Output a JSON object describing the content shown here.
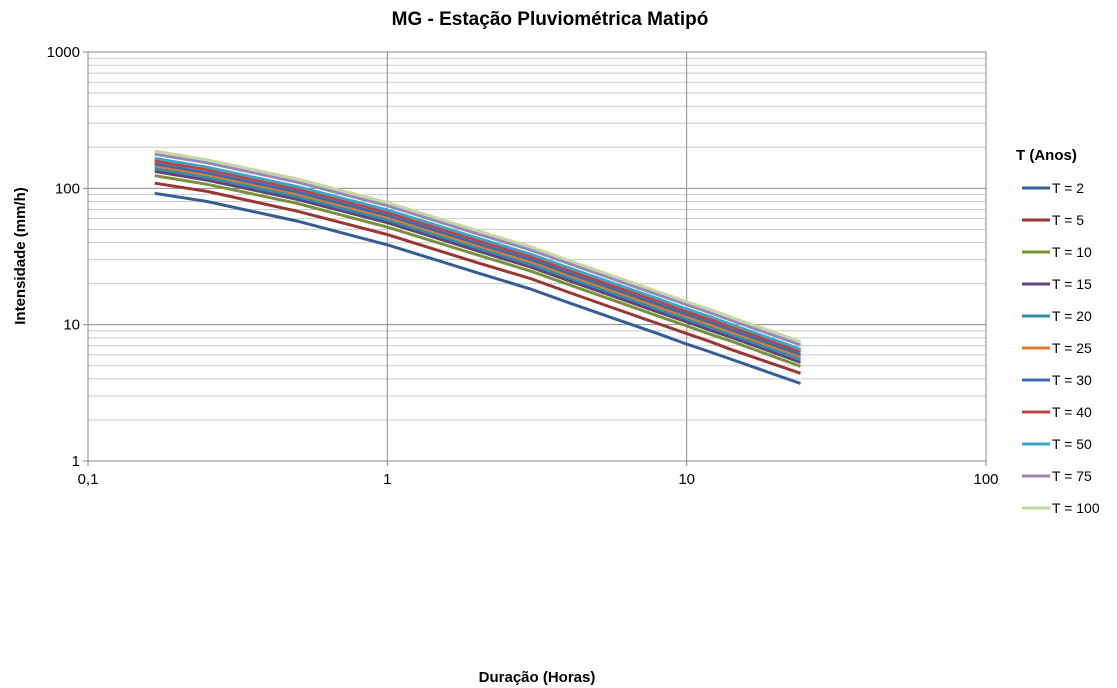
{
  "chart_data": {
    "type": "line",
    "title": "MG - Estação Pluviométrica Matipó",
    "xlabel": "Duração (Horas)",
    "ylabel": "Intensidade (mm/h)",
    "x_scale": "log",
    "y_scale": "log",
    "xlim": [
      0.1,
      100
    ],
    "ylim": [
      1,
      1000
    ],
    "x_tick_labels": [
      "0,1",
      "1",
      "10",
      "100"
    ],
    "y_tick_labels": [
      "1",
      "10",
      "100",
      "1000"
    ],
    "grid": true,
    "legend_title": "T (Anos)",
    "legend_position": "right",
    "x": [
      0.167,
      0.25,
      0.5,
      1,
      2,
      3,
      4,
      6,
      8,
      10,
      12,
      14,
      24
    ],
    "series": [
      {
        "name": "T = 2",
        "color": "#365e96",
        "values": [
          92,
          80,
          57.5,
          38.5,
          24,
          18.3,
          14.6,
          10.7,
          8.6,
          7.2,
          6.3,
          5.6,
          3.7
        ]
      },
      {
        "name": "T = 5",
        "color": "#9a3633",
        "values": [
          109,
          95,
          68,
          45.8,
          28.5,
          21.8,
          17.4,
          12.7,
          10.2,
          8.6,
          7.5,
          6.6,
          4.4
        ]
      },
      {
        "name": "T = 10",
        "color": "#78913a",
        "values": [
          124,
          107,
          77.5,
          52,
          32.5,
          24.8,
          19.8,
          14.5,
          11.6,
          9.8,
          8.5,
          7.6,
          4.95
        ]
      },
      {
        "name": "T = 15",
        "color": "#5c4580",
        "values": [
          133,
          115,
          83,
          56,
          34.8,
          26.5,
          21.2,
          15.5,
          12.4,
          10.5,
          9.1,
          8.1,
          5.3
        ]
      },
      {
        "name": "T = 20",
        "color": "#2f8fa6",
        "values": [
          140,
          121,
          87,
          58.8,
          36.6,
          27.9,
          22.3,
          16.3,
          13.1,
          11,
          9.6,
          8.5,
          5.6
        ]
      },
      {
        "name": "T = 25",
        "color": "#e57c2c",
        "values": [
          146,
          126,
          91,
          61.3,
          38.1,
          29.1,
          23.2,
          17,
          13.6,
          11.5,
          10,
          8.9,
          5.85
        ]
      },
      {
        "name": "T = 30",
        "color": "#3f6bac",
        "values": [
          151,
          130,
          94,
          63.4,
          39.4,
          30.1,
          24,
          17.6,
          14.1,
          11.9,
          10.4,
          9.2,
          6.05
        ]
      },
      {
        "name": "T = 40",
        "color": "#c0413d",
        "values": [
          159,
          137,
          99,
          66.8,
          41.5,
          31.7,
          25.3,
          18.5,
          14.9,
          12.5,
          10.9,
          9.7,
          6.35
        ]
      },
      {
        "name": "T = 50",
        "color": "#3aa5c5",
        "values": [
          166,
          143,
          103,
          69.5,
          43.2,
          33,
          26.3,
          19.3,
          15.5,
          13,
          11.4,
          10.1,
          6.6
        ]
      },
      {
        "name": "T = 75",
        "color": "#9a87b8",
        "values": [
          178,
          154,
          111,
          74.6,
          46.4,
          35.4,
          28.3,
          20.7,
          16.6,
          14,
          12.2,
          10.8,
          7.1
        ]
      },
      {
        "name": "T = 100",
        "color": "#c3d7a1",
        "values": [
          188,
          162,
          117,
          78.6,
          48.9,
          37.3,
          29.8,
          21.8,
          17.5,
          14.7,
          12.9,
          11.4,
          7.5
        ]
      }
    ]
  }
}
